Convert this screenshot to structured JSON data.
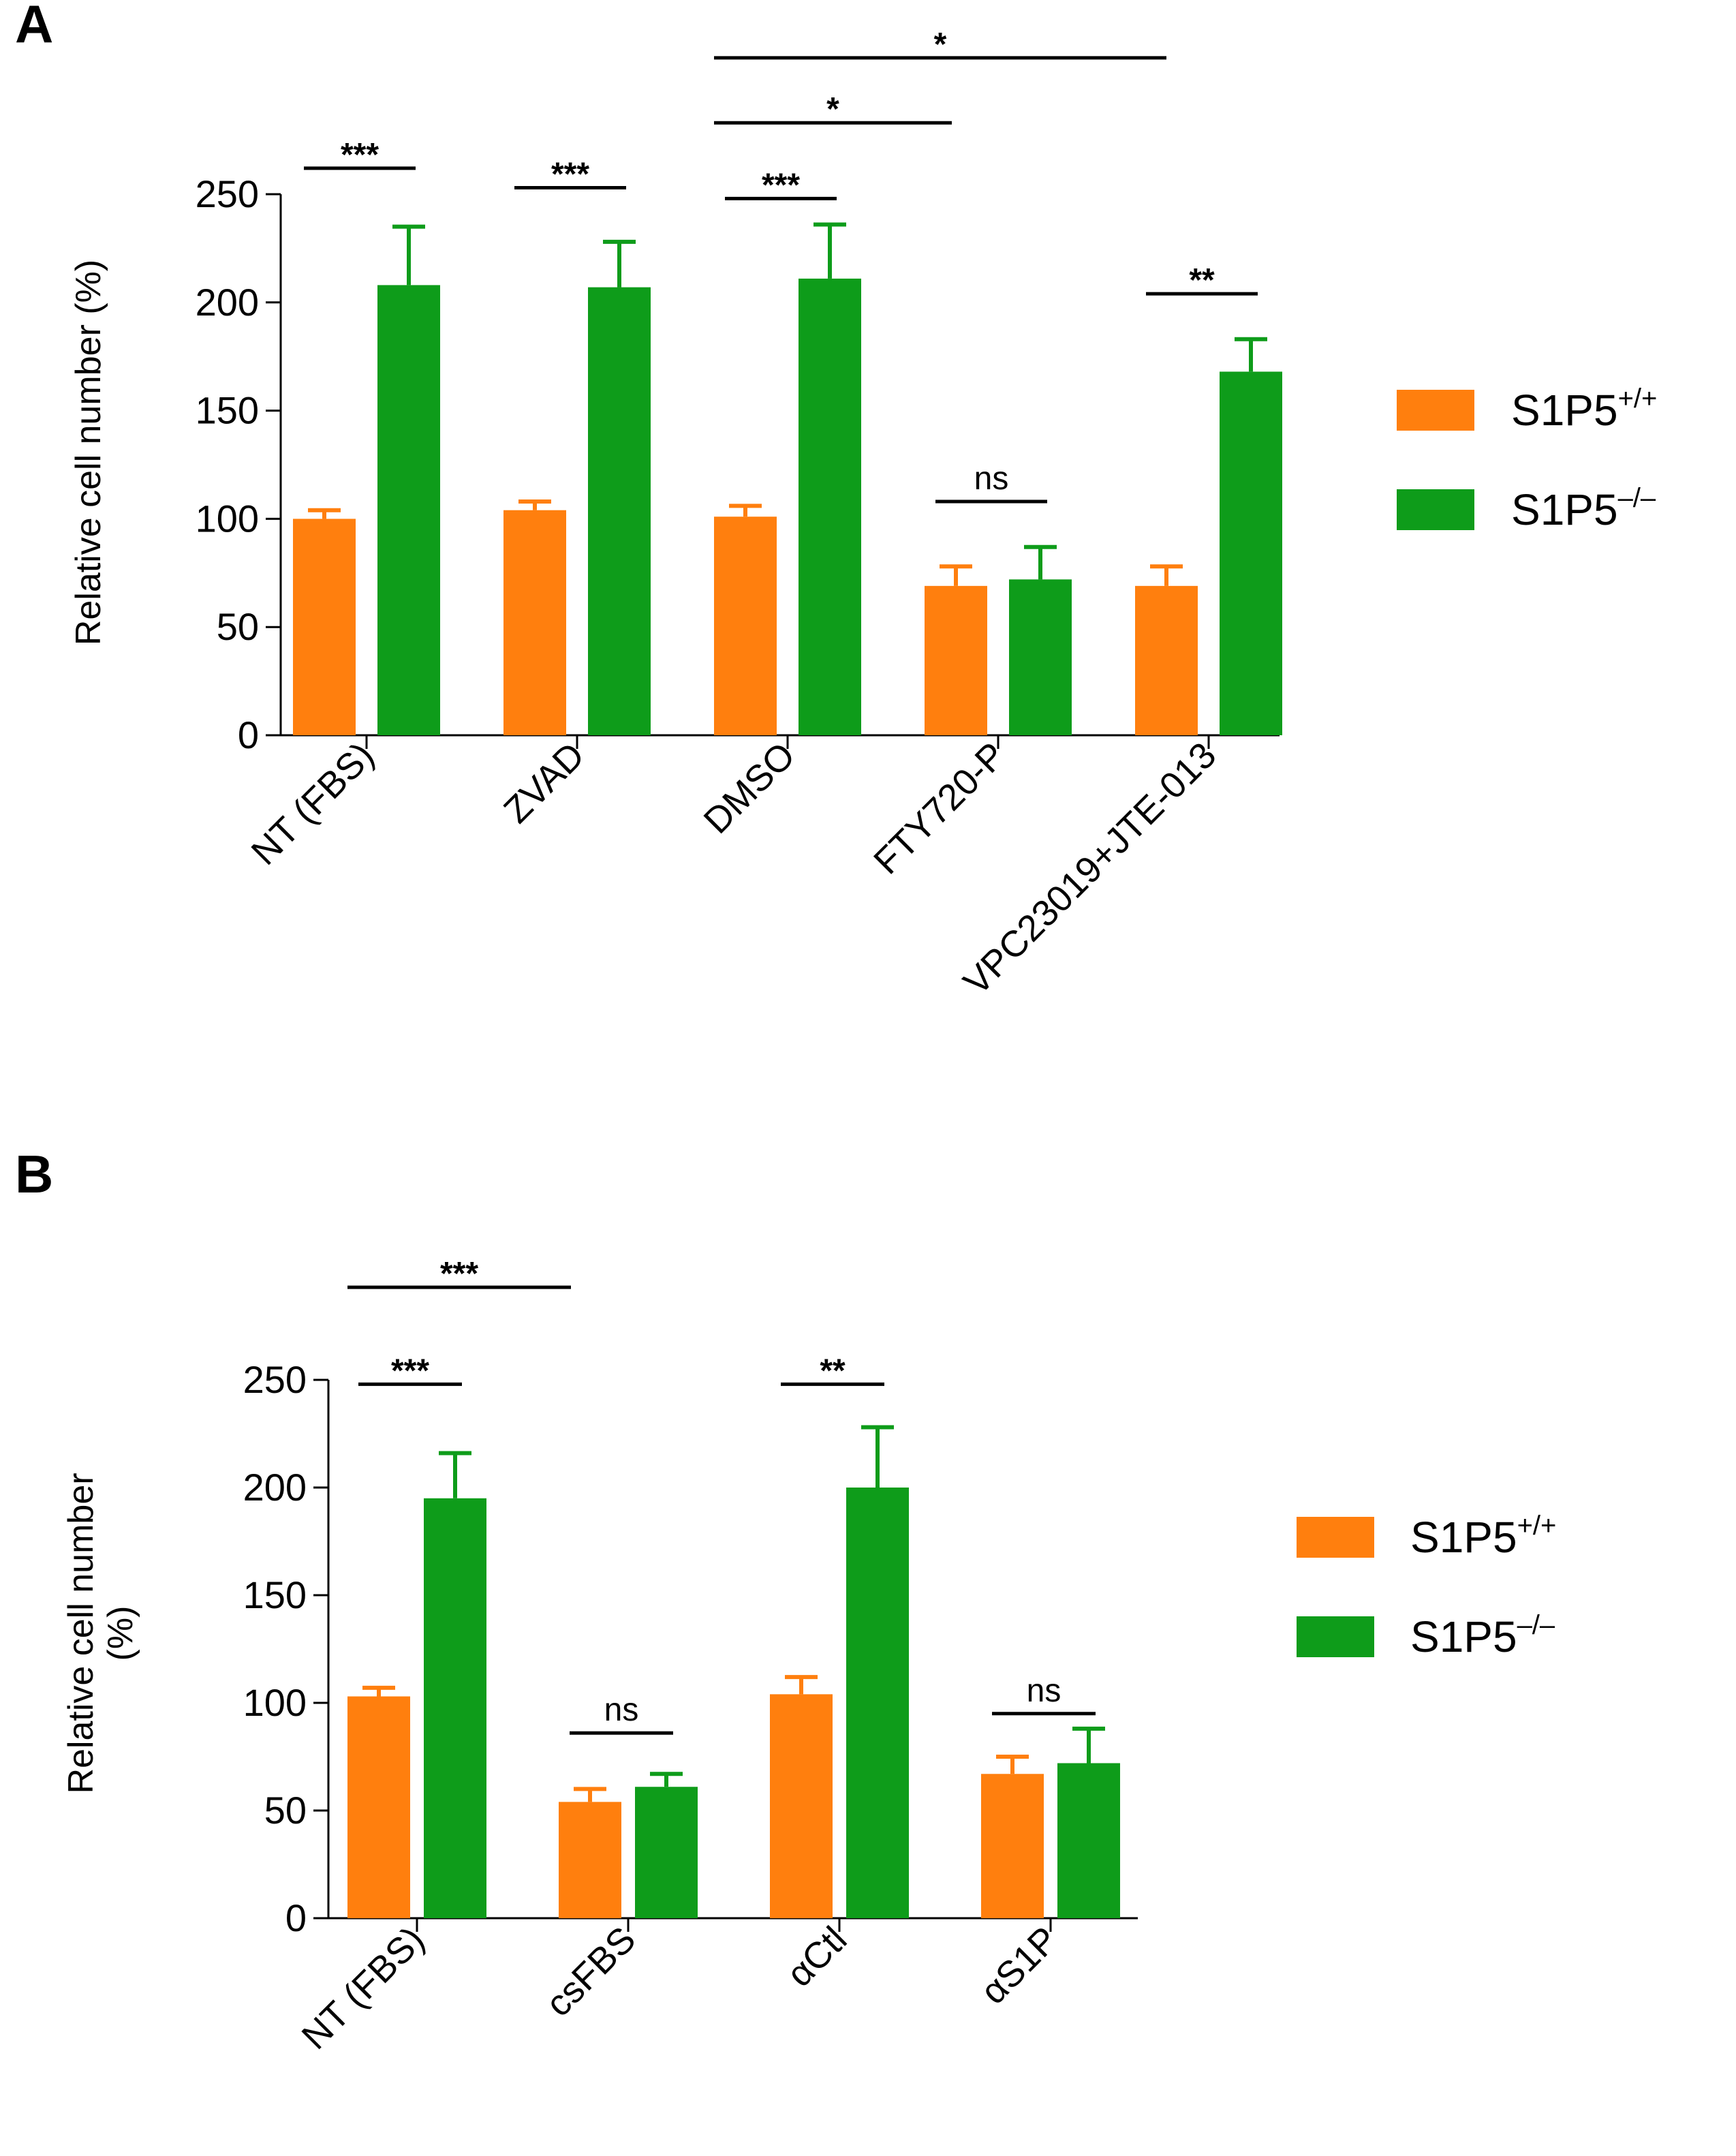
{
  "figure": {
    "colors": {
      "s1p5_wt": "#FF7F0E",
      "s1p5_ko": "#0E9C1A",
      "axis": "#000000"
    },
    "legend": {
      "wt_base": "S1P5",
      "wt_sup": "+/+",
      "ko_base": "S1P5",
      "ko_sup": "–/–"
    }
  },
  "chart_data": [
    {
      "panel": "A",
      "type": "bar",
      "ylabel": "Relative cell number (%)",
      "ylabel_lines": [
        "Relative cell number (%)"
      ],
      "ylim": [
        0,
        250
      ],
      "yticks": [
        0,
        50,
        100,
        150,
        200,
        250
      ],
      "categories": [
        "NT (FBS)",
        "ZVAD",
        "DMSO",
        "FTY720-P",
        "VPC23019+JTE-013"
      ],
      "series": [
        {
          "name": "S1P5+/+",
          "values": [
            100,
            104,
            101,
            69,
            69
          ],
          "errors": [
            4,
            4,
            5,
            9,
            9
          ]
        },
        {
          "name": "S1P5–/–",
          "values": [
            208,
            207,
            211,
            72,
            168
          ],
          "errors": [
            27,
            21,
            25,
            15,
            15
          ]
        }
      ],
      "annotations": [
        {
          "label": "***",
          "type": "within",
          "group": 0,
          "level": 262
        },
        {
          "label": "***",
          "type": "within",
          "group": 1,
          "level": 253
        },
        {
          "label": "***",
          "type": "within",
          "group": 2,
          "level": 248
        },
        {
          "label": "ns",
          "type": "within",
          "group": 3,
          "level": 108
        },
        {
          "label": "**",
          "type": "within",
          "group": 4,
          "level": 204
        },
        {
          "label": "*",
          "type": "between",
          "from": 2,
          "to": 3,
          "level": 283
        },
        {
          "label": "*",
          "type": "between",
          "from": 2,
          "to": 4,
          "level": 313
        }
      ]
    },
    {
      "panel": "B",
      "type": "bar",
      "ylabel": "Relative cell number (%)",
      "ylabel_lines": [
        "Relative cell number",
        "(%)"
      ],
      "ylim": [
        0,
        250
      ],
      "yticks": [
        0,
        50,
        100,
        150,
        200,
        250
      ],
      "categories": [
        "NT (FBS)",
        "csFBS",
        "αCtl",
        "αS1P"
      ],
      "series": [
        {
          "name": "S1P5+/+",
          "values": [
            103,
            54,
            104,
            67
          ],
          "errors": [
            4,
            6,
            8,
            8
          ]
        },
        {
          "name": "S1P5–/–",
          "values": [
            195,
            61,
            200,
            72
          ],
          "errors": [
            21,
            6,
            28,
            16
          ]
        }
      ],
      "annotations": [
        {
          "label": "***",
          "type": "within",
          "group": 0,
          "level": 248
        },
        {
          "label": "ns",
          "type": "within",
          "group": 1,
          "level": 86
        },
        {
          "label": "**",
          "type": "within",
          "group": 2,
          "level": 248
        },
        {
          "label": "ns",
          "type": "within",
          "group": 3,
          "level": 95
        },
        {
          "label": "***",
          "type": "between",
          "from": 0,
          "to": 1,
          "level": 293
        }
      ]
    }
  ]
}
